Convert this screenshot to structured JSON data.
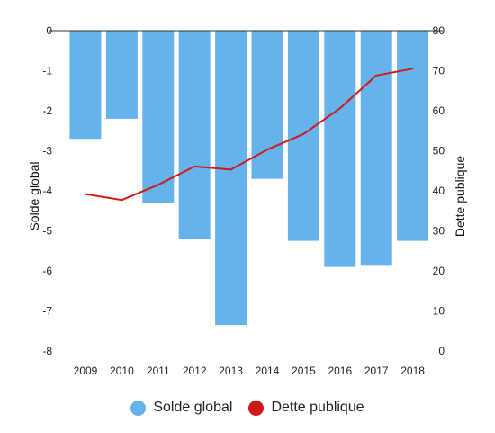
{
  "chart_data": {
    "type": "bar+line",
    "categories": [
      "2009",
      "2010",
      "2011",
      "2012",
      "2013",
      "2014",
      "2015",
      "2016",
      "2017",
      "2018"
    ],
    "series": [
      {
        "name": "Solde global",
        "type": "bar",
        "axis": "left",
        "color": "#66b2ea",
        "values": [
          -2.7,
          -2.2,
          -4.3,
          -5.2,
          -7.35,
          -3.7,
          -5.25,
          -5.9,
          -5.85,
          -5.25
        ]
      },
      {
        "name": "Dette publique",
        "type": "line",
        "axis": "right",
        "color": "#d01a1a",
        "values": [
          39.2,
          37.7,
          41.5,
          46.1,
          45.3,
          50.3,
          54.2,
          60.6,
          68.8,
          70.5
        ]
      }
    ],
    "yleft": {
      "label": "Solde global",
      "ylim": [
        -8,
        0
      ],
      "ticks": [
        "0",
        "-1",
        "-2",
        "-3",
        "-4",
        "-5",
        "-6",
        "-7",
        "-8"
      ]
    },
    "yright": {
      "label": "Dette publique",
      "ylim": [
        0,
        80
      ],
      "ticks": [
        "80",
        "70",
        "60",
        "50",
        "40",
        "30",
        "20",
        "10",
        "0"
      ]
    },
    "grid": false,
    "legend_position": "bottom"
  }
}
